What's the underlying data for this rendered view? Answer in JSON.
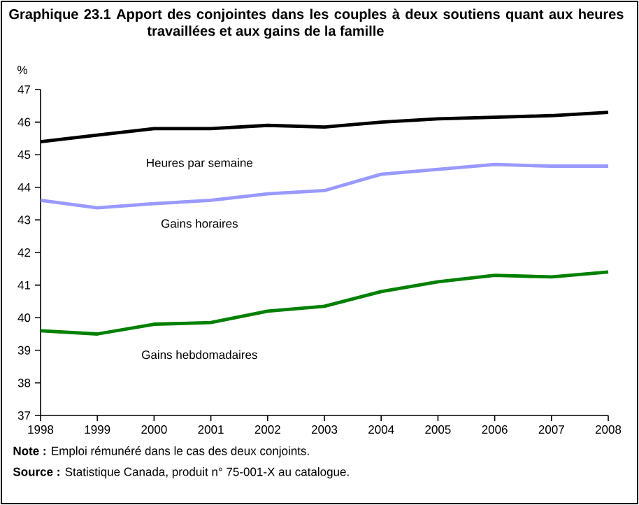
{
  "chart_data": {
    "type": "line",
    "title": "**Graphique 23.1 Apport des conjointes dans les couples à deux soutiens quant aux heures travaillées et aux gains de la famille**",
    "ylabel": "%",
    "x": [
      1998,
      1999,
      2000,
      2001,
      2002,
      2003,
      2004,
      2005,
      2006,
      2007,
      2008
    ],
    "series": [
      {
        "name": "Heures par semaine",
        "color": "#000000",
        "values": [
          45.4,
          45.6,
          45.8,
          45.8,
          45.9,
          45.85,
          46.0,
          46.1,
          46.15,
          46.2,
          46.3
        ]
      },
      {
        "name": "Gains horaires",
        "color": "#9999ff",
        "values": [
          43.6,
          43.37,
          43.5,
          43.6,
          43.8,
          43.9,
          44.4,
          44.55,
          44.7,
          44.65,
          44.65
        ]
      },
      {
        "name": "Gains hebdomadaires",
        "color": "#008000",
        "values": [
          39.6,
          39.5,
          39.8,
          39.85,
          40.2,
          40.35,
          40.8,
          41.1,
          41.3,
          41.25,
          41.4
        ]
      }
    ],
    "xlim": [
      1998,
      2008
    ],
    "ylim": [
      37,
      47
    ],
    "xticks": [
      1998,
      1999,
      2000,
      2001,
      2002,
      2003,
      2004,
      2005,
      2006,
      2007,
      2008
    ],
    "yticks": [
      37,
      38,
      39,
      40,
      41,
      42,
      43,
      44,
      45,
      46,
      47
    ],
    "grid": false,
    "legend": false,
    "marker": "none",
    "line_style": "solid",
    "annotations": [
      "**Note :** Emploi rémunéré dans le cas des deux conjoints.",
      "**Source :** Statistique Canada, produit n° 75-001-X au catalogue."
    ]
  }
}
